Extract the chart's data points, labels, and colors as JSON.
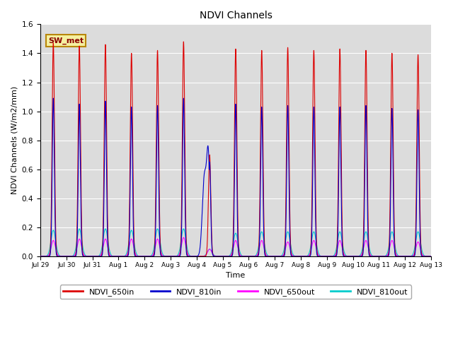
{
  "title": "NDVI Channels",
  "ylabel": "NDVI Channels (W/m2/mm)",
  "xlabel": "Time",
  "ylim": [
    0,
    1.6
  ],
  "yticks": [
    0.0,
    0.2,
    0.4,
    0.6,
    0.8,
    1.0,
    1.2,
    1.4,
    1.6
  ],
  "background_color": "#dcdcdc",
  "annotation_text": "SW_met",
  "annotation_facecolor": "#f5f0a0",
  "annotation_edgecolor": "#b8860b",
  "colors": {
    "NDVI_650in": "#dd0000",
    "NDVI_810in": "#0000cc",
    "NDVI_650out": "#ff00ff",
    "NDVI_810out": "#00cccc"
  },
  "num_days": 15,
  "peak_650in": [
    1.47,
    1.45,
    1.46,
    1.4,
    1.42,
    1.48,
    0.7,
    1.43,
    1.42,
    1.44,
    1.42,
    1.43,
    1.42,
    1.4,
    1.39
  ],
  "peak_810in": [
    1.09,
    1.05,
    1.07,
    1.03,
    1.04,
    1.09,
    0.65,
    1.05,
    1.03,
    1.04,
    1.03,
    1.03,
    1.04,
    1.02,
    1.01
  ],
  "peak_650out": [
    0.11,
    0.12,
    0.12,
    0.12,
    0.12,
    0.13,
    0.05,
    0.11,
    0.11,
    0.1,
    0.11,
    0.11,
    0.11,
    0.11,
    0.1
  ],
  "peak_810out": [
    0.18,
    0.19,
    0.19,
    0.18,
    0.19,
    0.19,
    0.05,
    0.16,
    0.17,
    0.17,
    0.17,
    0.17,
    0.17,
    0.17,
    0.17
  ],
  "x_tick_labels": [
    "Jul 29",
    "Jul 30",
    "Jul 31",
    "Aug 1",
    "Aug 2",
    "Aug 3",
    "Aug 4",
    "Aug 5",
    "Aug 6",
    "Aug 7",
    "Aug 8",
    "Aug 9",
    "Aug 10",
    "Aug 11",
    "Aug 12",
    "Aug 13"
  ]
}
